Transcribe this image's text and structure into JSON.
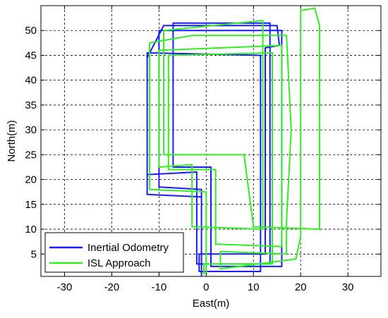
{
  "chart_data": {
    "type": "line",
    "title": "",
    "xlabel": "East(m)",
    "ylabel": "North(m)",
    "xlim": [
      -35,
      37
    ],
    "ylim": [
      0.5,
      55
    ],
    "xticks": [
      -30,
      -20,
      -10,
      0,
      10,
      20,
      30
    ],
    "yticks": [
      5,
      10,
      15,
      20,
      25,
      30,
      35,
      40,
      45,
      50
    ],
    "grid": true,
    "legend_position": "bottom-left",
    "series": [
      {
        "name": "Inertial Odometry",
        "color": "#1a1aff",
        "points": [
          [
            -1,
            1
          ],
          [
            -1,
            16.5
          ],
          [
            -12.5,
            17
          ],
          [
            -12.5,
            44.5
          ],
          [
            -9,
            51
          ],
          [
            15,
            51
          ],
          [
            15.5,
            47
          ],
          [
            12.5,
            46.5
          ],
          [
            12.5,
            5
          ],
          [
            -1.5,
            5
          ],
          [
            -1.5,
            1.5
          ],
          [
            11.5,
            1.5
          ],
          [
            11.5,
            45
          ],
          [
            -12.5,
            45.5
          ],
          [
            -12.5,
            21
          ],
          [
            -2,
            21.5
          ],
          [
            -2,
            3
          ],
          [
            13.5,
            3
          ],
          [
            13.5,
            51.5
          ],
          [
            -7,
            51.5
          ],
          [
            -7,
            22.5
          ],
          [
            1,
            22.5
          ],
          [
            1,
            2.5
          ],
          [
            16,
            2.5
          ],
          [
            16,
            50
          ],
          [
            -10,
            50
          ],
          [
            -10,
            18.5
          ],
          [
            -1,
            18
          ],
          [
            -1,
            0.7
          ]
        ]
      },
      {
        "name": "ISL Approach",
        "color": "#33ee22",
        "points": [
          [
            0,
            1
          ],
          [
            0,
            17.5
          ],
          [
            -12,
            18
          ],
          [
            -12,
            47.5
          ],
          [
            -3,
            49
          ],
          [
            17,
            49
          ],
          [
            18,
            30
          ],
          [
            17,
            11.5
          ],
          [
            17,
            5
          ],
          [
            3,
            5.5
          ],
          [
            3,
            2
          ],
          [
            19,
            4
          ],
          [
            20,
            8.5
          ],
          [
            20,
            54
          ],
          [
            23,
            54.5
          ],
          [
            24,
            51
          ],
          [
            24,
            10
          ],
          [
            10,
            10.5
          ],
          [
            8,
            25
          ],
          [
            -9,
            25
          ],
          [
            -9,
            50
          ],
          [
            12,
            52
          ],
          [
            12,
            10
          ],
          [
            -3,
            10.5
          ],
          [
            -3,
            23
          ],
          [
            -10,
            22.5
          ],
          [
            -10,
            46
          ],
          [
            16,
            47
          ],
          [
            16,
            6.5
          ],
          [
            2,
            7
          ],
          [
            2,
            22
          ],
          [
            -8,
            22
          ],
          [
            -8,
            45
          ],
          [
            14,
            45.5
          ],
          [
            14,
            3
          ],
          [
            -0.5,
            3
          ],
          [
            -0.5,
            1
          ]
        ]
      }
    ]
  }
}
